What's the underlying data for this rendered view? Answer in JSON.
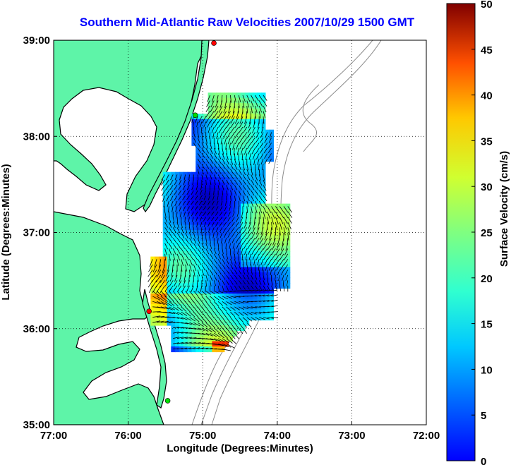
{
  "chart_data": {
    "type": "heatmap",
    "title": "Southern Mid-Atlantic Raw Velocities 2007/10/29 1500 GMT",
    "xlabel": "Longitude (Degrees:Minutes)",
    "ylabel": "Latitude (Degrees:Minutes)",
    "x_ticks": [
      "77:00",
      "76:00",
      "75:00",
      "74:00",
      "73:00",
      "72:00"
    ],
    "x_tick_values": [
      -77,
      -76,
      -75,
      -74,
      -73,
      -72
    ],
    "y_ticks": [
      "39:00",
      "38:00",
      "37:00",
      "36:00",
      "35:00"
    ],
    "y_tick_values": [
      39,
      38,
      37,
      36,
      35
    ],
    "xlim": [
      -77,
      -72
    ],
    "ylim": [
      35,
      39
    ],
    "grid": "dotted",
    "colorbar": {
      "label": "Surface Velocity (cm/s)",
      "range": [
        0,
        50
      ],
      "ticks": [
        "0",
        "5",
        "10",
        "15",
        "20",
        "25",
        "30",
        "35",
        "40",
        "45",
        "50"
      ],
      "colormap": "jet"
    },
    "colors": {
      "land": "#5ef4a8",
      "coastline": "#000000",
      "bathymetry": "#8c8c8c",
      "title": "#0000ff"
    },
    "stations": [
      {
        "lon": -74.85,
        "lat": 38.97,
        "color": "#ff0000"
      },
      {
        "lon": -75.1,
        "lat": 38.22,
        "color": "#00dd00"
      },
      {
        "lon": -75.72,
        "lat": 36.18,
        "color": "#ff0000"
      },
      {
        "lon": -75.47,
        "lat": 35.25,
        "color": "#00dd00"
      }
    ],
    "velocity_field": {
      "lon_range": [
        -75.55,
        -74.1
      ],
      "lat_range": [
        35.75,
        38.4
      ],
      "speed_range_cm_s": [
        3,
        45
      ]
    }
  }
}
